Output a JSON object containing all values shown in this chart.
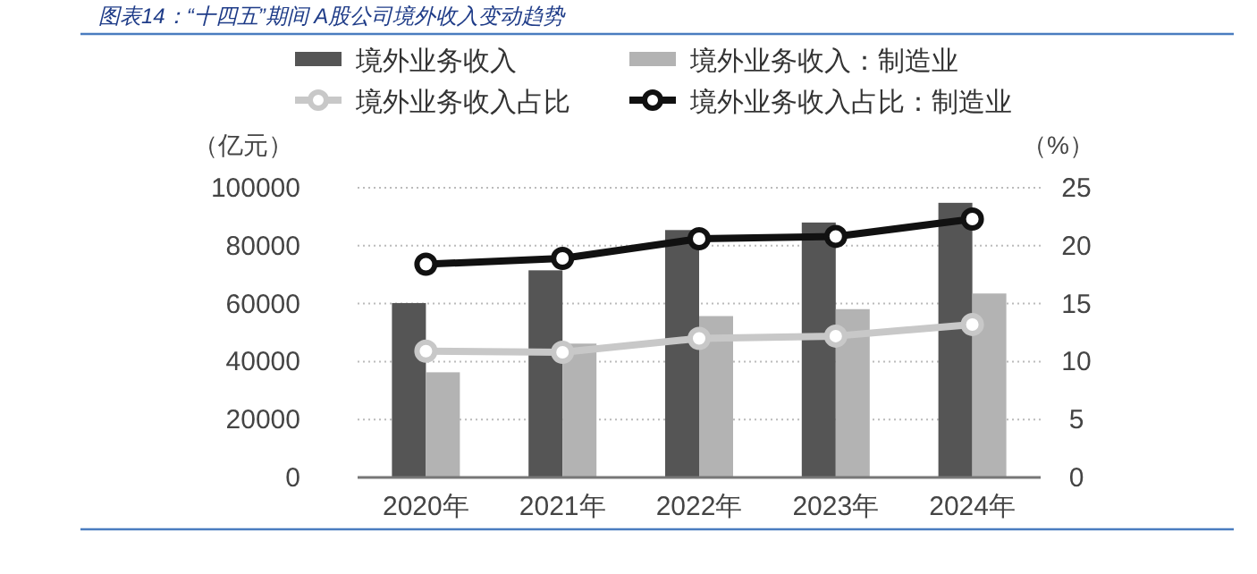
{
  "chart_data": {
    "type": "bar",
    "title": "图表14：“十四五”期间 A股公司境外收入变动趋势",
    "ylabel": "（亿元）",
    "y2label": "（%）",
    "categories": [
      "2020年",
      "2021年",
      "2022年",
      "2023年",
      "2024年"
    ],
    "series": [
      {
        "name": "境外业务收入",
        "color": "#555555",
        "values": [
          60200,
          71500,
          85400,
          88000,
          94800
        ]
      },
      {
        "name": "境外业务收入：制造业",
        "color": "#b3b3b3",
        "values": [
          36300,
          46200,
          55700,
          58100,
          63500
        ]
      },
      {
        "name": "境外业务收入占比",
        "type": "line",
        "axis": "y2",
        "color": "#c8c8c8",
        "values": [
          10.9,
          10.8,
          12.0,
          12.2,
          13.2
        ]
      },
      {
        "name": "境外业务收入占比：制造业",
        "type": "line",
        "axis": "y2",
        "color": "#111111",
        "values": [
          18.4,
          18.9,
          20.6,
          20.8,
          22.3
        ]
      }
    ],
    "ylim": [
      0,
      100000
    ],
    "yticks": [
      0,
      20000,
      40000,
      60000,
      80000,
      100000
    ],
    "y2lim": [
      0,
      25
    ],
    "y2ticks": [
      0,
      5,
      10,
      15,
      20,
      25
    ],
    "grid": "y",
    "legend": "top",
    "marker": "circle"
  }
}
